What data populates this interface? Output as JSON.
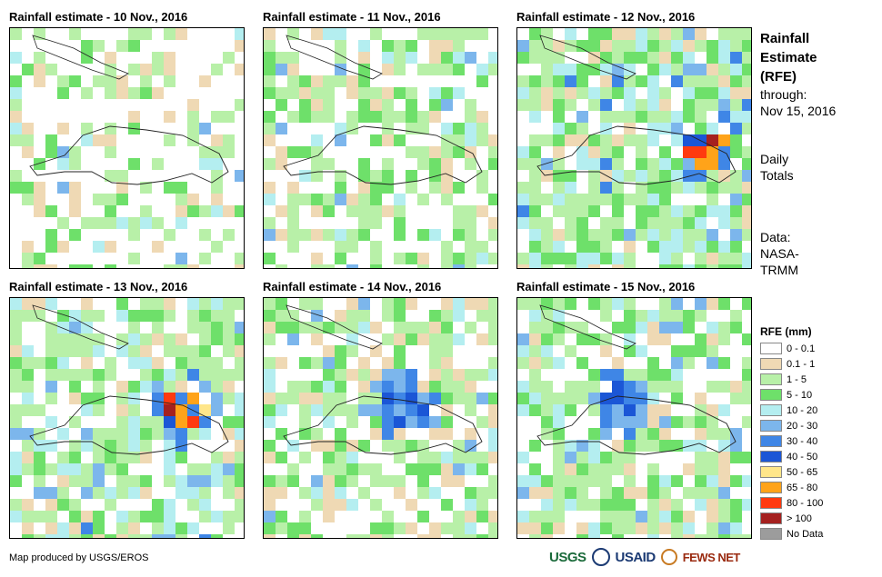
{
  "panels": [
    {
      "title": "Rainfall estimate - 10 Nov., 2016"
    },
    {
      "title": "Rainfall estimate - 11 Nov., 2016"
    },
    {
      "title": "Rainfall estimate - 12 Nov., 2016"
    },
    {
      "title": "Rainfall estimate - 13 Nov., 2016"
    },
    {
      "title": "Rainfall estimate - 14 Nov., 2016"
    },
    {
      "title": "Rainfall estimate - 15 Nov., 2016"
    }
  ],
  "side": {
    "title_lines": [
      "Rainfall",
      "Estimate",
      "(RFE)"
    ],
    "through_label": "through:",
    "through_date": "Nov 15, 2016",
    "period_lines": [
      "Daily",
      "Totals"
    ],
    "data_lines": [
      "Data:",
      "NASA-",
      "TRMM"
    ]
  },
  "legend": {
    "title": "RFE (mm)",
    "items": [
      {
        "label": "0 - 0.1",
        "color": "#ffffff"
      },
      {
        "label": "0.1 - 1",
        "color": "#efd9b4"
      },
      {
        "label": "1 - 5",
        "color": "#b8f0a8"
      },
      {
        "label": "5 - 10",
        "color": "#6ee06a"
      },
      {
        "label": "10 - 20",
        "color": "#b4eef0"
      },
      {
        "label": "20 - 30",
        "color": "#7cb6ec"
      },
      {
        "label": "30 - 40",
        "color": "#3f86e6"
      },
      {
        "label": "40 - 50",
        "color": "#1b56d6"
      },
      {
        "label": "50 - 65",
        "color": "#ffe68a"
      },
      {
        "label": "65 - 80",
        "color": "#ffa319"
      },
      {
        "label": "80 - 100",
        "color": "#ff3a0f"
      },
      {
        "label": "> 100",
        "color": "#a5211f"
      },
      {
        "label": "No Data",
        "color": "#9c9c9c"
      }
    ]
  },
  "footer": {
    "credit": "Map produced by USGS/EROS",
    "logo_usgs": "USGS",
    "logo_usaid": "USAID",
    "logo_fews": "FEWS NET"
  }
}
